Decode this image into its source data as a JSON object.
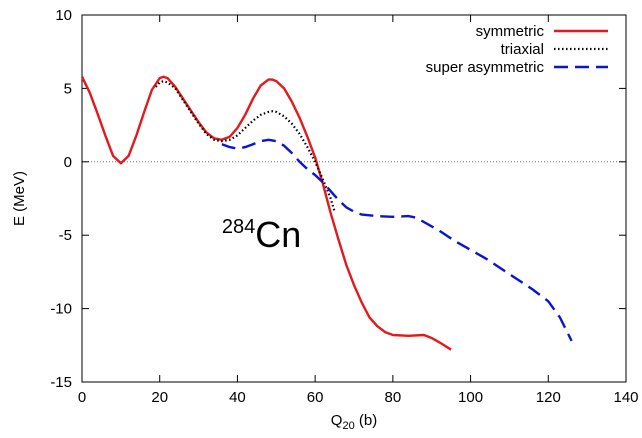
{
  "chart_data": {
    "type": "line",
    "xlabel_main": "Q",
    "xlabel_sub": "20",
    "xlabel_unit": " (b)",
    "ylabel": "E (MeV)",
    "xlim": [
      0,
      140
    ],
    "ylim": [
      -15,
      10
    ],
    "x_ticks": [
      0,
      20,
      40,
      60,
      80,
      100,
      120,
      140
    ],
    "y_ticks": [
      10,
      5,
      0,
      -5,
      -10,
      -15
    ],
    "zero_line": true,
    "legend_position": "top-right",
    "annotation": {
      "sup": "284",
      "text": "Cn",
      "x": 36,
      "y": -5.8
    },
    "series": [
      {
        "name": "symmetric",
        "color": "#e31a1c",
        "dash": "solid",
        "points": [
          [
            0,
            5.8
          ],
          [
            2,
            4.7
          ],
          [
            4,
            3.3
          ],
          [
            6,
            1.8
          ],
          [
            8,
            0.4
          ],
          [
            10,
            -0.1
          ],
          [
            12,
            0.4
          ],
          [
            14,
            1.8
          ],
          [
            16,
            3.4
          ],
          [
            18,
            4.9
          ],
          [
            20,
            5.7
          ],
          [
            21,
            5.8
          ],
          [
            22,
            5.7
          ],
          [
            24,
            5.1
          ],
          [
            26,
            4.3
          ],
          [
            28,
            3.5
          ],
          [
            30,
            2.7
          ],
          [
            32,
            2.0
          ],
          [
            34,
            1.6
          ],
          [
            36,
            1.5
          ],
          [
            38,
            1.7
          ],
          [
            40,
            2.3
          ],
          [
            42,
            3.2
          ],
          [
            44,
            4.3
          ],
          [
            46,
            5.2
          ],
          [
            48,
            5.6
          ],
          [
            49,
            5.6
          ],
          [
            50,
            5.5
          ],
          [
            52,
            5.0
          ],
          [
            54,
            4.1
          ],
          [
            56,
            3.0
          ],
          [
            58,
            1.7
          ],
          [
            60,
            0.3
          ],
          [
            62,
            -1.5
          ],
          [
            64,
            -3.5
          ],
          [
            66,
            -5.3
          ],
          [
            68,
            -7.0
          ],
          [
            70,
            -8.4
          ],
          [
            72,
            -9.6
          ],
          [
            74,
            -10.6
          ],
          [
            76,
            -11.2
          ],
          [
            78,
            -11.6
          ],
          [
            80,
            -11.8
          ],
          [
            84,
            -11.85
          ],
          [
            88,
            -11.8
          ],
          [
            90,
            -12.0
          ],
          [
            92,
            -12.3
          ],
          [
            95,
            -12.8
          ]
        ]
      },
      {
        "name": "triaxial",
        "color": "#000000",
        "dash": "dotted",
        "points": [
          [
            19,
            5.1
          ],
          [
            20,
            5.4
          ],
          [
            21,
            5.5
          ],
          [
            22,
            5.4
          ],
          [
            24,
            5.0
          ],
          [
            26,
            4.2
          ],
          [
            28,
            3.4
          ],
          [
            30,
            2.6
          ],
          [
            32,
            1.9
          ],
          [
            34,
            1.5
          ],
          [
            36,
            1.4
          ],
          [
            38,
            1.5
          ],
          [
            40,
            1.8
          ],
          [
            42,
            2.3
          ],
          [
            44,
            2.8
          ],
          [
            46,
            3.2
          ],
          [
            48,
            3.4
          ],
          [
            49,
            3.45
          ],
          [
            50,
            3.4
          ],
          [
            52,
            3.1
          ],
          [
            54,
            2.6
          ],
          [
            56,
            1.9
          ],
          [
            58,
            1.0
          ],
          [
            60,
            0.0
          ],
          [
            62,
            -1.2
          ],
          [
            64,
            -2.5
          ],
          [
            65,
            -3.4
          ]
        ]
      },
      {
        "name": "super asymmetric",
        "color": "#0a14d2",
        "dash": "dashed",
        "points": [
          [
            36,
            1.2
          ],
          [
            38,
            1.0
          ],
          [
            40,
            0.9
          ],
          [
            42,
            1.0
          ],
          [
            44,
            1.2
          ],
          [
            46,
            1.4
          ],
          [
            48,
            1.5
          ],
          [
            50,
            1.4
          ],
          [
            52,
            1.1
          ],
          [
            54,
            0.6
          ],
          [
            56,
            0.0
          ],
          [
            58,
            -0.5
          ],
          [
            60,
            -0.9
          ],
          [
            62,
            -1.4
          ],
          [
            64,
            -2.0
          ],
          [
            66,
            -2.6
          ],
          [
            68,
            -3.1
          ],
          [
            70,
            -3.4
          ],
          [
            72,
            -3.6
          ],
          [
            76,
            -3.7
          ],
          [
            80,
            -3.75
          ],
          [
            84,
            -3.7
          ],
          [
            86,
            -3.8
          ],
          [
            88,
            -4.1
          ],
          [
            92,
            -4.7
          ],
          [
            96,
            -5.4
          ],
          [
            100,
            -6.0
          ],
          [
            104,
            -6.6
          ],
          [
            108,
            -7.3
          ],
          [
            112,
            -8.0
          ],
          [
            116,
            -8.7
          ],
          [
            120,
            -9.5
          ],
          [
            123,
            -10.6
          ],
          [
            126,
            -12.2
          ]
        ]
      }
    ]
  }
}
